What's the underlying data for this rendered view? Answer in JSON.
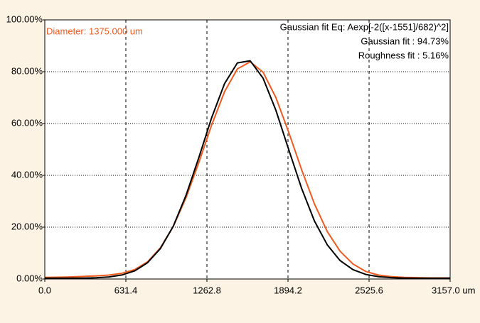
{
  "chart_data": {
    "type": "line",
    "annotations": [
      "Diameter: 1375.000 um",
      "Gaussian fit Eq: Aexp[-2([x-1551]/682)^2]",
      "Gaussian fit : 94.73%",
      "Roughness fit : 5.16%"
    ],
    "x": [
      0,
      100,
      200,
      300,
      400,
      500,
      600,
      700,
      800,
      900,
      1000,
      1100,
      1200,
      1300,
      1400,
      1500,
      1600,
      1700,
      1800,
      1900,
      2000,
      2100,
      2200,
      2300,
      2400,
      2500,
      2600,
      2700,
      2800,
      2900,
      3000,
      3100,
      3157
    ],
    "series": [
      {
        "color": "#f05a1e",
        "values": [
          0.6,
          0.7,
          0.8,
          1.0,
          1.2,
          1.5,
          2.2,
          3.6,
          6.6,
          12.0,
          20.2,
          31.4,
          45.0,
          59.5,
          72.3,
          81.1,
          83.8,
          79.8,
          70.0,
          56.6,
          42.2,
          29.0,
          18.3,
          10.7,
          5.8,
          2.9,
          1.5,
          0.9,
          0.6,
          0.5,
          0.4,
          0.4,
          0.4
        ]
      },
      {
        "color": "#000000",
        "values": [
          0.3,
          0.3,
          0.3,
          0.36,
          0.47,
          0.79,
          1.53,
          3.12,
          6.27,
          11.73,
          20.3,
          32.3,
          46.9,
          62.3,
          75.4,
          83.4,
          84.2,
          77.5,
          65.1,
          49.9,
          35.0,
          22.4,
          13.2,
          7.1,
          3.6,
          1.76,
          0.9,
          0.5,
          0.35,
          0.3,
          0.3,
          0.3,
          0.3
        ]
      }
    ],
    "xlim": [
      0,
      3157
    ],
    "xticks": [
      {
        "value": 0,
        "label": "0.0"
      },
      {
        "value": 631.4,
        "label": "631.4"
      },
      {
        "value": 1262.8,
        "label": "1262.8"
      },
      {
        "value": 1894.2,
        "label": "1894.2"
      },
      {
        "value": 2525.6,
        "label": "2525.6"
      },
      {
        "value": 3157,
        "label": "3157.0 um"
      }
    ],
    "ylim": [
      0,
      100
    ],
    "yticks": [
      {
        "value": 0,
        "label": "0.00%"
      },
      {
        "value": 20,
        "label": "20.00%"
      },
      {
        "value": 40,
        "label": "40.00%"
      },
      {
        "value": 60,
        "label": "60.00%"
      },
      {
        "value": 80,
        "label": "80.00%"
      },
      {
        "value": 100,
        "label": "100.00%"
      }
    ],
    "grid": true
  }
}
